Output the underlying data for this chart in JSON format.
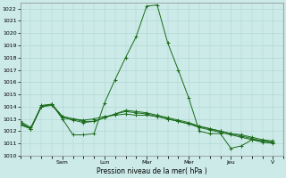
{
  "xlabel": "Pression niveau de la mer( hPa )",
  "ylim": [
    1010,
    1022.5
  ],
  "yticks": [
    1010,
    1011,
    1012,
    1013,
    1014,
    1015,
    1016,
    1017,
    1018,
    1019,
    1020,
    1021,
    1022
  ],
  "background_color": "#cceae8",
  "grid_color": "#aad4d0",
  "line_color": "#1a6b1a",
  "day_labels": [
    "Sam",
    "Lun",
    "Mar",
    "Mer",
    "Jeu",
    "V"
  ],
  "series1_x": [
    0,
    0.5,
    1,
    1.5,
    2,
    2.5,
    3,
    3.5,
    4,
    4.5,
    5,
    5.5,
    6,
    6.5,
    7,
    7.5,
    8,
    8.5,
    9,
    9.5,
    10,
    10.5,
    11,
    11.5,
    12
  ],
  "series1_y": [
    1012.5,
    1012.2,
    1014.1,
    1014.2,
    1013.0,
    1011.7,
    1011.7,
    1011.8,
    1014.3,
    1016.2,
    1018.0,
    1019.7,
    1022.2,
    1022.3,
    1019.2,
    1017.0,
    1014.7,
    1012.0,
    1011.8,
    1011.8,
    1010.6,
    1010.8,
    1011.3,
    1011.2,
    1011.1
  ],
  "series2_x": [
    0,
    0.5,
    1,
    1.5,
    2,
    2.5,
    3,
    3.5,
    4,
    4.5,
    5,
    5.5,
    6,
    6.5,
    7,
    7.5,
    8,
    8.5,
    9,
    9.5,
    10,
    10.5,
    11,
    11.5,
    12
  ],
  "series2_y": [
    1012.8,
    1012.3,
    1014.0,
    1014.1,
    1013.2,
    1013.0,
    1012.9,
    1013.0,
    1013.2,
    1013.3,
    1013.4,
    1013.3,
    1013.3,
    1013.2,
    1013.0,
    1012.8,
    1012.6,
    1012.4,
    1012.2,
    1012.0,
    1011.8,
    1011.7,
    1011.5,
    1011.3,
    1011.2
  ],
  "series3_x": [
    0,
    0.5,
    1,
    1.5,
    2,
    2.5,
    3,
    3.5,
    4,
    4.5,
    5,
    5.5,
    6,
    6.5,
    7,
    7.5,
    8,
    8.5,
    9,
    9.5,
    10,
    10.5,
    11,
    11.5,
    12
  ],
  "series3_y": [
    1012.7,
    1012.2,
    1014.0,
    1014.2,
    1013.1,
    1012.9,
    1012.7,
    1012.8,
    1013.1,
    1013.4,
    1013.7,
    1013.6,
    1013.5,
    1013.3,
    1013.1,
    1012.9,
    1012.7,
    1012.4,
    1012.2,
    1012.0,
    1011.8,
    1011.6,
    1011.4,
    1011.2,
    1011.1
  ],
  "series4_x": [
    0,
    0.5,
    1,
    1.5,
    2,
    2.5,
    3,
    3.5,
    4,
    4.5,
    5,
    5.5,
    6,
    6.5,
    7,
    7.5,
    8,
    8.5,
    9,
    9.5,
    10,
    10.5,
    11,
    11.5,
    12
  ],
  "series4_y": [
    1012.6,
    1012.2,
    1014.0,
    1014.2,
    1013.2,
    1013.0,
    1012.8,
    1012.8,
    1013.1,
    1013.4,
    1013.6,
    1013.5,
    1013.4,
    1013.2,
    1013.0,
    1012.8,
    1012.6,
    1012.3,
    1012.1,
    1011.9,
    1011.7,
    1011.5,
    1011.3,
    1011.1,
    1011.0
  ]
}
